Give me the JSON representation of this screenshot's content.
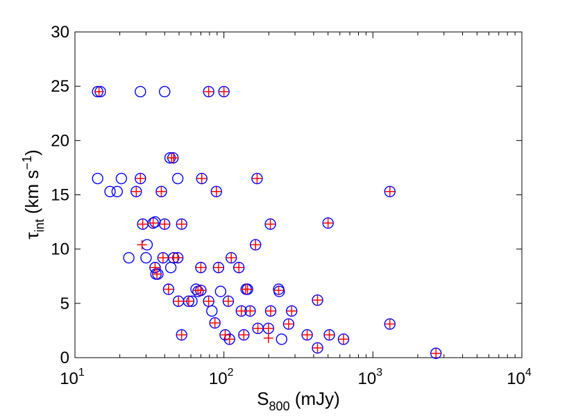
{
  "chart_data": {
    "type": "scatter",
    "x_scale": "log",
    "xlim": [
      10,
      10000
    ],
    "ylim": [
      0,
      30
    ],
    "x_ticks": [
      {
        "value": 10,
        "base": "10",
        "exp": "1"
      },
      {
        "value": 100,
        "base": "10",
        "exp": "2"
      },
      {
        "value": 1000,
        "base": "10",
        "exp": "3"
      },
      {
        "value": 10000,
        "base": "10",
        "exp": "4"
      }
    ],
    "y_ticks": [
      "0",
      "5",
      "10",
      "15",
      "20",
      "25",
      "30"
    ],
    "xlabel": {
      "main": "S",
      "sub": "800",
      "rest": " (mJy)"
    },
    "ylabel": {
      "main": "τ",
      "sub": "int",
      "rest": " (km s",
      "sup": "−1",
      "end": ")"
    },
    "colors": {
      "circle": "#0000ff",
      "plus": "#ff0000",
      "axis": "#000000"
    },
    "series": [
      {
        "name": "circles",
        "marker": "circle",
        "points": [
          [
            14.2,
            24.5
          ],
          [
            14.8,
            24.5
          ],
          [
            27.5,
            24.5
          ],
          [
            40,
            24.5
          ],
          [
            79,
            24.5
          ],
          [
            100,
            24.5
          ],
          [
            43.5,
            18.4
          ],
          [
            45.5,
            18.4
          ],
          [
            14.2,
            16.5
          ],
          [
            20.5,
            16.5
          ],
          [
            27.5,
            16.5
          ],
          [
            49,
            16.5
          ],
          [
            71,
            16.5
          ],
          [
            167,
            16.5
          ],
          [
            17.2,
            15.3
          ],
          [
            19.2,
            15.3
          ],
          [
            25.8,
            15.3
          ],
          [
            38,
            15.3
          ],
          [
            89,
            15.3
          ],
          [
            1300,
            15.3
          ],
          [
            28.5,
            12.3
          ],
          [
            33.5,
            12.4
          ],
          [
            34.5,
            12.5
          ],
          [
            40,
            12.3
          ],
          [
            52,
            12.3
          ],
          [
            205,
            12.3
          ],
          [
            500,
            12.4
          ],
          [
            30.5,
            10.4
          ],
          [
            163,
            10.4
          ],
          [
            23,
            9.2
          ],
          [
            30,
            9.2
          ],
          [
            39,
            9.2
          ],
          [
            46,
            9.2
          ],
          [
            49,
            9.2
          ],
          [
            112,
            9.2
          ],
          [
            34.5,
            8.3
          ],
          [
            44,
            8.3
          ],
          [
            70,
            8.3
          ],
          [
            92,
            8.3
          ],
          [
            126,
            8.3
          ],
          [
            35,
            7.7
          ],
          [
            36,
            7.7
          ],
          [
            42.5,
            6.3
          ],
          [
            65,
            6.3
          ],
          [
            67,
            6.1
          ],
          [
            70,
            6.2
          ],
          [
            95,
            6.1
          ],
          [
            141,
            6.3
          ],
          [
            144,
            6.3
          ],
          [
            233,
            6.3
          ],
          [
            235,
            6.1
          ],
          [
            49.5,
            5.2
          ],
          [
            58,
            5.2
          ],
          [
            61,
            5.2
          ],
          [
            79,
            5.2
          ],
          [
            107,
            5.2
          ],
          [
            425,
            5.3
          ],
          [
            83,
            4.3
          ],
          [
            131,
            4.3
          ],
          [
            150,
            4.3
          ],
          [
            206,
            4.3
          ],
          [
            285,
            4.3
          ],
          [
            87,
            3.2
          ],
          [
            272,
            3.1
          ],
          [
            1300,
            3.1
          ],
          [
            169,
            2.7
          ],
          [
            199,
            2.7
          ],
          [
            52,
            2.1
          ],
          [
            102,
            2.1
          ],
          [
            136,
            2.1
          ],
          [
            362,
            2.1
          ],
          [
            510,
            2.1
          ],
          [
            109,
            1.7
          ],
          [
            244,
            1.7
          ],
          [
            635,
            1.7
          ],
          [
            425,
            0.9
          ],
          [
            2650,
            0.4
          ]
        ]
      },
      {
        "name": "plus",
        "marker": "plus",
        "points": [
          [
            14.5,
            24.5
          ],
          [
            79,
            24.5
          ],
          [
            100,
            24.5
          ],
          [
            44.5,
            18.4
          ],
          [
            46,
            18.4
          ],
          [
            27.5,
            16.5
          ],
          [
            71,
            16.5
          ],
          [
            167,
            16.5
          ],
          [
            25.8,
            15.3
          ],
          [
            38,
            15.3
          ],
          [
            89,
            15.3
          ],
          [
            1300,
            15.3
          ],
          [
            28.5,
            12.3
          ],
          [
            33.5,
            12.4
          ],
          [
            40,
            12.3
          ],
          [
            52,
            12.3
          ],
          [
            205,
            12.3
          ],
          [
            500,
            12.4
          ],
          [
            28.2,
            10.4
          ],
          [
            163,
            10.4
          ],
          [
            39,
            9.2
          ],
          [
            46,
            9.2
          ],
          [
            49,
            9.2
          ],
          [
            112,
            9.2
          ],
          [
            34.5,
            8.3
          ],
          [
            70,
            8.3
          ],
          [
            92,
            8.3
          ],
          [
            126,
            8.3
          ],
          [
            35.5,
            7.7
          ],
          [
            42.5,
            6.3
          ],
          [
            67,
            6.2
          ],
          [
            70,
            6.2
          ],
          [
            140,
            6.3
          ],
          [
            144,
            6.3
          ],
          [
            233,
            6.2
          ],
          [
            49.5,
            5.2
          ],
          [
            58,
            5.2
          ],
          [
            79,
            5.2
          ],
          [
            107,
            5.2
          ],
          [
            425,
            5.3
          ],
          [
            131,
            4.3
          ],
          [
            150,
            4.3
          ],
          [
            206,
            4.3
          ],
          [
            285,
            4.3
          ],
          [
            87,
            3.2
          ],
          [
            272,
            3.1
          ],
          [
            1300,
            3.1
          ],
          [
            169,
            2.7
          ],
          [
            199,
            2.7
          ],
          [
            199,
            1.8
          ],
          [
            52,
            2.1
          ],
          [
            102,
            2.1
          ],
          [
            136,
            2.1
          ],
          [
            362,
            2.1
          ],
          [
            510,
            2.1
          ],
          [
            109,
            1.7
          ],
          [
            635,
            1.7
          ],
          [
            425,
            0.9
          ],
          [
            2650,
            0.4
          ]
        ]
      }
    ]
  }
}
